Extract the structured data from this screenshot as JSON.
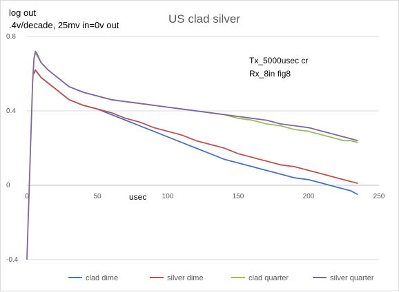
{
  "chart_data": {
    "type": "line",
    "title": "US clad silver",
    "ylabel_lines": [
      "log out",
      ".4v/decade, 25mv in=0v out"
    ],
    "xlabel": "usec",
    "annotations": [
      "Tx_5000usec cr",
      "Rx_8in fig8"
    ],
    "xlim": [
      0,
      250
    ],
    "ylim": [
      -0.4,
      0.8
    ],
    "x_ticks": [
      0,
      50,
      100,
      150,
      200,
      250
    ],
    "y_ticks": [
      -0.4,
      0,
      0.4,
      0.8
    ],
    "x_tick_labels": [
      "0",
      "50",
      "100",
      "150",
      "200",
      "250"
    ],
    "y_tick_labels": [
      "-0.4",
      "0",
      "0.4",
      "0.8"
    ],
    "grid": "horizontal",
    "legend_position": "bottom",
    "series": [
      {
        "name": "clad dime",
        "color": "#4472c4",
        "x": [
          5,
          6,
          7,
          10,
          15,
          20,
          25,
          30,
          40,
          50,
          60,
          70,
          80,
          90,
          100,
          110,
          120,
          130,
          140,
          150,
          160,
          170,
          180,
          190,
          200,
          210,
          215,
          220,
          225,
          230,
          235
        ],
        "y": [
          0.6,
          0.62,
          0.61,
          0.58,
          0.55,
          0.52,
          0.49,
          0.46,
          0.43,
          0.41,
          0.38,
          0.35,
          0.32,
          0.29,
          0.26,
          0.23,
          0.2,
          0.17,
          0.14,
          0.12,
          0.1,
          0.08,
          0.06,
          0.04,
          0.03,
          0.01,
          0.0,
          -0.01,
          -0.02,
          -0.03,
          -0.05
        ]
      },
      {
        "name": "silver dime",
        "color": "#c0504d",
        "x": [
          5,
          6,
          7,
          10,
          15,
          20,
          25,
          30,
          40,
          50,
          60,
          70,
          80,
          90,
          100,
          110,
          120,
          130,
          140,
          150,
          160,
          170,
          180,
          190,
          200,
          210,
          215,
          220,
          225,
          230,
          235
        ],
        "y": [
          0.6,
          0.62,
          0.61,
          0.58,
          0.55,
          0.52,
          0.49,
          0.46,
          0.43,
          0.41,
          0.39,
          0.36,
          0.34,
          0.31,
          0.29,
          0.27,
          0.24,
          0.22,
          0.2,
          0.17,
          0.15,
          0.13,
          0.11,
          0.1,
          0.08,
          0.06,
          0.05,
          0.04,
          0.03,
          0.02,
          0.01
        ]
      },
      {
        "name": "clad quarter",
        "color": "#9bbb59",
        "x": [
          5,
          6,
          7,
          10,
          15,
          20,
          25,
          30,
          40,
          50,
          60,
          70,
          80,
          90,
          100,
          110,
          120,
          130,
          140,
          150,
          160,
          170,
          180,
          190,
          200,
          210,
          215,
          220,
          225,
          230,
          235
        ],
        "y": [
          0.68,
          0.71,
          0.7,
          0.66,
          0.62,
          0.59,
          0.56,
          0.53,
          0.5,
          0.48,
          0.46,
          0.45,
          0.44,
          0.43,
          0.42,
          0.41,
          0.4,
          0.39,
          0.38,
          0.36,
          0.35,
          0.33,
          0.32,
          0.3,
          0.29,
          0.27,
          0.26,
          0.25,
          0.24,
          0.24,
          0.23
        ]
      },
      {
        "name": "silver quarter",
        "color": "#8064a2",
        "x": [
          0,
          4,
          5,
          6,
          7,
          10,
          15,
          20,
          25,
          30,
          40,
          50,
          60,
          70,
          80,
          90,
          100,
          110,
          120,
          130,
          140,
          150,
          160,
          170,
          180,
          190,
          200,
          210,
          215,
          220,
          225,
          230,
          235
        ],
        "y": [
          -0.4,
          0.55,
          0.68,
          0.72,
          0.71,
          0.66,
          0.62,
          0.59,
          0.56,
          0.53,
          0.5,
          0.48,
          0.46,
          0.45,
          0.44,
          0.43,
          0.42,
          0.41,
          0.4,
          0.39,
          0.38,
          0.37,
          0.36,
          0.35,
          0.33,
          0.32,
          0.31,
          0.29,
          0.28,
          0.27,
          0.26,
          0.25,
          0.24
        ]
      }
    ]
  }
}
